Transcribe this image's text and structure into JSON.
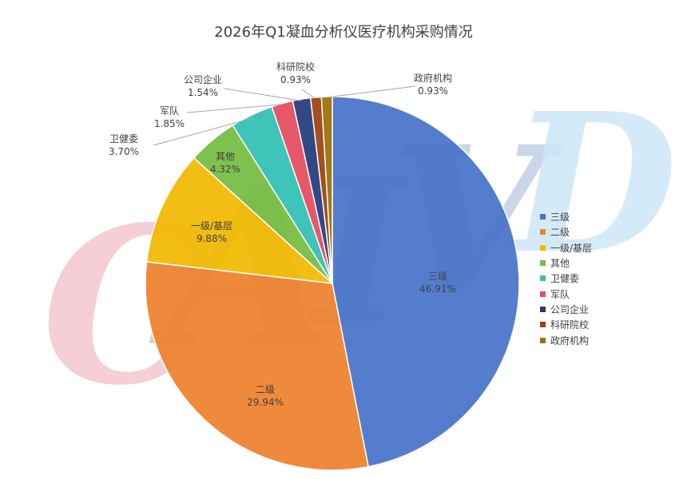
{
  "chart_data": {
    "type": "pie",
    "title": "2026年Q1凝血分析仪医疗机构采购情况",
    "start_angle": "top",
    "direction": "clockwise",
    "legend_position": "right",
    "slices": [
      {
        "label": "三级",
        "value": 46.91,
        "value_label": "46.91%",
        "color": "#4874CB"
      },
      {
        "label": "二级",
        "value": 29.94,
        "value_label": "29.94%",
        "color": "#EE822F"
      },
      {
        "label": "一级/基层",
        "value": 9.88,
        "value_label": "9.88%",
        "color": "#F2BA02"
      },
      {
        "label": "其他",
        "value": 4.32,
        "value_label": "4.32%",
        "color": "#75BD42"
      },
      {
        "label": "卫健委",
        "value": 3.7,
        "value_label": "3.70%",
        "color": "#30C0B4"
      },
      {
        "label": "军队",
        "value": 1.85,
        "value_label": "1.85%",
        "color": "#E54C5E"
      },
      {
        "label": "公司企业",
        "value": 1.54,
        "value_label": "1.54%",
        "color": "#243C7A"
      },
      {
        "label": "科研院校",
        "value": 0.93,
        "value_label": "0.93%",
        "color": "#A0420E"
      },
      {
        "label": "政府机构",
        "value": 0.93,
        "value_label": "0.93%",
        "color": "#9C7005"
      }
    ]
  },
  "watermark": {
    "letters": [
      "C",
      "A",
      "I",
      "V",
      "D"
    ],
    "colors": [
      "#F4C7CE",
      "#F4C7CE",
      "#CFE9C9",
      "#CDE7F7",
      "#CDE7F7"
    ]
  }
}
